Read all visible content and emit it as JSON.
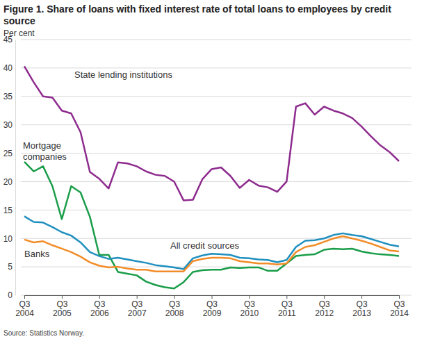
{
  "chart_data": {
    "type": "line",
    "title": "Figure 1. Share of loans with fixed interest rate of total loans to employees by credit source",
    "y_label": "Per cent",
    "source": "Source: Statistics Norway.",
    "categories": [
      "Q3\n2004",
      null,
      null,
      null,
      "Q3\n2005",
      null,
      null,
      null,
      "Q3\n2006",
      null,
      null,
      null,
      "Q3\n2007",
      null,
      null,
      null,
      "Q3\n2008",
      null,
      null,
      null,
      "Q3\n2009",
      null,
      null,
      null,
      "Q3\n2010",
      null,
      null,
      null,
      "Q3\n2011",
      null,
      null,
      null,
      "Q3\n2012",
      null,
      null,
      null,
      "Q3\n2013",
      null,
      null,
      null,
      "Q3\n2014"
    ],
    "ylim": [
      0,
      45
    ],
    "yticks": [
      0,
      5,
      10,
      15,
      20,
      25,
      30,
      35,
      40,
      45
    ],
    "grid": true,
    "series": [
      {
        "name": "State lending institutions",
        "color": "#8e2b8e",
        "values": [
          40.3,
          37.5,
          35,
          34.8,
          32.5,
          32,
          28.7,
          21.7,
          20.5,
          18.8,
          23.4,
          23.2,
          22.7,
          21.8,
          21.2,
          21,
          20,
          16.7,
          16.8,
          20.4,
          22.2,
          22.5,
          21,
          18.9,
          20.3,
          19.3,
          19,
          18.2,
          20,
          33.2,
          33.8,
          31.8,
          33.2,
          32.5,
          32,
          31.2,
          29.7,
          28,
          26.4,
          25.2,
          23.6
        ]
      },
      {
        "name": "Mortgage companies",
        "color": "#1a9d49",
        "values": [
          23.5,
          21.8,
          22.7,
          19.2,
          13.4,
          19.2,
          18.1,
          13.8,
          7.1,
          7.1,
          4.1,
          3.8,
          3.5,
          2.4,
          1.8,
          1.4,
          1.2,
          2.3,
          4.1,
          4.4,
          4.5,
          4.5,
          4.9,
          4.8,
          4.9,
          4.9,
          4.3,
          4.3,
          5.6,
          6.9,
          7.1,
          7.2,
          8.0,
          8.2,
          8.1,
          8.2,
          7.7,
          7.4,
          7.2,
          7.1,
          6.9
        ]
      },
      {
        "name": "All credit sources",
        "color": "#1f8fbf",
        "values": [
          13.9,
          12.9,
          12.8,
          12.0,
          11.1,
          10.5,
          9.3,
          7.6,
          6.9,
          6.4,
          6.6,
          6.3,
          6.0,
          5.7,
          5.3,
          5.1,
          4.9,
          4.6,
          6.5,
          7.0,
          7.3,
          7.2,
          7.1,
          6.6,
          6.5,
          6.3,
          6.2,
          5.8,
          6.2,
          8.5,
          9.6,
          9.7,
          10.0,
          10.6,
          10.9,
          10.6,
          10.4,
          9.9,
          9.4,
          8.9,
          8.6
        ]
      },
      {
        "name": "Banks",
        "color": "#f28c28",
        "values": [
          9.8,
          9.3,
          9.5,
          8.8,
          8.2,
          7.6,
          6.8,
          5.8,
          5.2,
          4.9,
          5.0,
          4.7,
          4.5,
          4.5,
          4.2,
          4.2,
          4.2,
          4.2,
          6.0,
          6.4,
          6.6,
          6.6,
          6.5,
          6.0,
          5.8,
          5.6,
          5.6,
          5.4,
          5.6,
          7.6,
          8.5,
          8.8,
          9.4,
          10.0,
          10.4,
          10.0,
          9.6,
          9.1,
          8.5,
          7.9,
          7.7
        ]
      }
    ]
  }
}
